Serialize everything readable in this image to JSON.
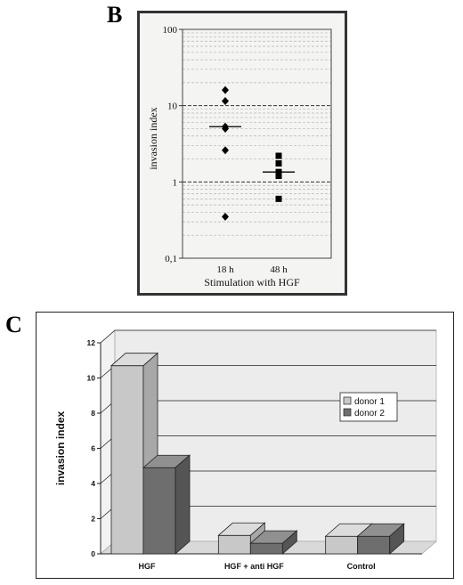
{
  "panel_b": {
    "letter": "B"
  },
  "panel_c": {
    "letter": "C"
  },
  "colors": {
    "donor1_front": "#c8c8c8",
    "donor1_top": "#dcdcdc",
    "donor1_side": "#a8a8a8",
    "donor2_front": "#6e6e6e",
    "donor2_top": "#909090",
    "donor2_side": "#555555"
  },
  "chart_data": [
    {
      "type": "scatter",
      "title": "",
      "xlabel": "Stimulation with HGF",
      "ylabel": "invasion index",
      "y_scale": "log",
      "ylim": [
        0.1,
        100
      ],
      "y_ticks": [
        {
          "value": 100,
          "label": "100"
        },
        {
          "value": 10,
          "label": "10"
        },
        {
          "value": 1,
          "label": "1"
        },
        {
          "value": 0.1,
          "label": "0,1"
        }
      ],
      "categories": [
        "18 h",
        "48 h"
      ],
      "series": [
        {
          "marker": "diamond",
          "category": "18 h",
          "values": [
            16,
            11.5,
            5.3,
            5.0,
            2.6,
            0.35
          ],
          "median": 5.3
        },
        {
          "marker": "square",
          "category": "48 h",
          "values": [
            2.2,
            1.75,
            1.35,
            1.2,
            0.6
          ],
          "median": 1.35
        }
      ],
      "grid": true,
      "legend": "none"
    },
    {
      "type": "bar",
      "style": "3d",
      "title": "",
      "xlabel": "",
      "ylabel": "invasion index",
      "ylim": [
        0,
        12
      ],
      "y_ticks": [
        0,
        2,
        4,
        6,
        8,
        10,
        12
      ],
      "categories": [
        "HGF",
        "HGF + anti HGF",
        "Control"
      ],
      "series": [
        {
          "name": "donor 1",
          "values": [
            10.7,
            1.05,
            1.0
          ]
        },
        {
          "name": "donor 2",
          "values": [
            4.9,
            0.6,
            1.0
          ]
        }
      ],
      "grid": true,
      "legend": "right"
    }
  ]
}
